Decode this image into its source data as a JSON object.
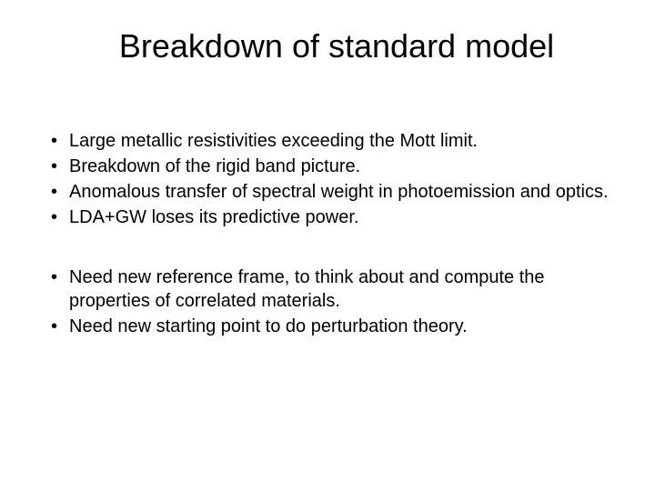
{
  "slide": {
    "title": "Breakdown of standard model",
    "title_fontsize": 36,
    "body_fontsize": 20,
    "text_color": "#000000",
    "background_color": "#ffffff",
    "bullet_marker": "•",
    "group1": {
      "item1": "Large  metallic resistivities exceeding the Mott limit.",
      "item2": "Breakdown of the rigid band picture.",
      "item3": "Anomalous transfer of spectral weight in photoemission and optics.",
      "item4": "LDA+GW loses its predictive power."
    },
    "group2": {
      "item1": "Need new reference frame, to think about and compute the properties of correlated materials.",
      "item2": "Need new starting point to do perturbation theory."
    }
  }
}
